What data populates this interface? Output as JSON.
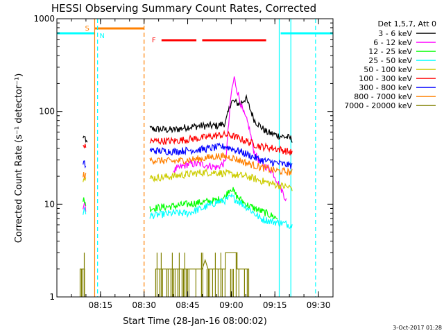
{
  "chart_data": {
    "type": "line",
    "title": "HESSI Observing Summary Count Rates, Corrected",
    "xlabel": "Start Time (28-Jan-16 08:00:02)",
    "ylabel": "Corrected Count Rate (s⁻¹ detector⁻¹)",
    "yscale": "log",
    "ylim": [
      1,
      1000
    ],
    "xlim_minutes": [
      0,
      95
    ],
    "y_ticks": [
      {
        "v": 1,
        "label": "1"
      },
      {
        "v": 10,
        "label": "10"
      },
      {
        "v": 100,
        "label": "100"
      },
      {
        "v": 1000,
        "label": "1000"
      }
    ],
    "x_ticks": [
      {
        "v": 15,
        "label": "08:15"
      },
      {
        "v": 30,
        "label": "08:30"
      },
      {
        "v": 45,
        "label": "08:45"
      },
      {
        "v": 60,
        "label": "09:00"
      },
      {
        "v": 75,
        "label": "09:15"
      },
      {
        "v": 90,
        "label": "09:30"
      }
    ],
    "legend_title": "Det 1,5,7, Att 0",
    "legend_position": "right",
    "timestamp": "3-Oct-2017 01:28",
    "flags": [
      {
        "label": "S",
        "color": "#ff8000",
        "x_start": 13,
        "x_end": 30
      },
      {
        "label": "N",
        "color": "#00ffff",
        "x_start": 0,
        "x_end": 13
      },
      {
        "label": "N",
        "color": "#00ffff",
        "x_start": 77,
        "x_end": 95
      },
      {
        "label": "F",
        "color": "#ff0000",
        "segments": [
          [
            36,
            48
          ],
          [
            50,
            72
          ]
        ]
      }
    ],
    "vlines": [
      {
        "x": 13,
        "color": "#ff8000",
        "style": "solid"
      },
      {
        "x": 14,
        "color": "#00ffff",
        "style": "dashed"
      },
      {
        "x": 30,
        "color": "#ff8000",
        "style": "dashed"
      },
      {
        "x": 76.5,
        "color": "#00ffff",
        "style": "solid"
      },
      {
        "x": 80.5,
        "color": "#00ffff",
        "style": "solid"
      },
      {
        "x": 89,
        "color": "#00ffff",
        "style": "dashed"
      }
    ],
    "series": [
      {
        "name": "3 - 6 keV",
        "color": "#000000",
        "segments": [
          [
            [
              9,
              60
            ],
            [
              10,
              45
            ],
            [
              10.5,
              50
            ]
          ],
          [
            [
              32,
              65
            ],
            [
              40,
              63
            ],
            [
              45,
              68
            ],
            [
              50,
              70
            ],
            [
              55,
              70
            ],
            [
              58,
              75
            ],
            [
              60,
              130
            ],
            [
              63,
              120
            ],
            [
              65,
              140
            ],
            [
              68,
              80
            ],
            [
              72,
              60
            ],
            [
              76,
              55
            ],
            [
              80,
              52
            ],
            [
              81,
              50
            ]
          ]
        ]
      },
      {
        "name": "6 - 12 keV",
        "color": "#ff00ff",
        "segments": [
          [
            [
              9,
              10
            ],
            [
              10,
              9
            ]
          ],
          [
            [
              40,
              23
            ],
            [
              45,
              27
            ],
            [
              50,
              27
            ],
            [
              55,
              25
            ],
            [
              58,
              28
            ],
            [
              60,
              160
            ],
            [
              61,
              230
            ],
            [
              62,
              170
            ],
            [
              64,
              100
            ],
            [
              66,
              70
            ],
            [
              68,
              35
            ],
            [
              70,
              28
            ],
            [
              74,
              23
            ],
            [
              77,
              15
            ],
            [
              79,
              11
            ]
          ]
        ]
      },
      {
        "name": "12 - 25 keV",
        "color": "#00ff00",
        "segments": [
          [
            [
              9,
              12
            ],
            [
              10,
              10
            ]
          ],
          [
            [
              32,
              9
            ],
            [
              40,
              9.5
            ],
            [
              45,
              10
            ],
            [
              50,
              10.5
            ],
            [
              55,
              11
            ],
            [
              58,
              12
            ],
            [
              59,
              14
            ],
            [
              60,
              15
            ],
            [
              62,
              12
            ],
            [
              65,
              10
            ],
            [
              68,
              9
            ],
            [
              72,
              8
            ],
            [
              76,
              7
            ]
          ]
        ]
      },
      {
        "name": "25 - 50 keV",
        "color": "#00ffff",
        "segments": [
          [
            [
              9,
              9
            ],
            [
              10,
              8
            ]
          ],
          [
            [
              32,
              7.5
            ],
            [
              40,
              8
            ],
            [
              45,
              8
            ],
            [
              50,
              9
            ],
            [
              55,
              10.5
            ],
            [
              58,
              11
            ],
            [
              60,
              12
            ],
            [
              62,
              11
            ],
            [
              66,
              9
            ],
            [
              70,
              7
            ],
            [
              74,
              6.5
            ],
            [
              78,
              6.2
            ],
            [
              80,
              6
            ],
            [
              81,
              5.8
            ]
          ]
        ]
      },
      {
        "name": "50 - 100 keV",
        "color": "#cccc00",
        "segments": [
          [
            [
              9,
              21
            ],
            [
              10,
              19
            ]
          ],
          [
            [
              32,
              19
            ],
            [
              40,
              20
            ],
            [
              45,
              21
            ],
            [
              50,
              22
            ],
            [
              55,
              22
            ],
            [
              60,
              21
            ],
            [
              65,
              20
            ],
            [
              70,
              18
            ],
            [
              76,
              16
            ],
            [
              81,
              15
            ]
          ]
        ]
      },
      {
        "name": "100 - 300 keV",
        "color": "#ff0000",
        "segments": [
          [
            [
              9,
              45
            ],
            [
              10,
              40
            ]
          ],
          [
            [
              32,
              48
            ],
            [
              40,
              48
            ],
            [
              45,
              50
            ],
            [
              50,
              52
            ],
            [
              55,
              55
            ],
            [
              58,
              56
            ],
            [
              60,
              55
            ],
            [
              65,
              48
            ],
            [
              70,
              42
            ],
            [
              75,
              40
            ],
            [
              81,
              36
            ]
          ]
        ]
      },
      {
        "name": "300 - 800 keV",
        "color": "#0000ff",
        "segments": [
          [
            [
              9,
              28
            ],
            [
              10,
              26
            ]
          ],
          [
            [
              32,
              38
            ],
            [
              40,
              37
            ],
            [
              45,
              38
            ],
            [
              50,
              39
            ],
            [
              55,
              41
            ],
            [
              58,
              42
            ],
            [
              60,
              40
            ],
            [
              65,
              35
            ],
            [
              70,
              30
            ],
            [
              75,
              28
            ],
            [
              81,
              26
            ]
          ]
        ]
      },
      {
        "name": "800 - 7000 keV",
        "color": "#ff8000",
        "segments": [
          [
            [
              9,
              21
            ],
            [
              10,
              20
            ]
          ],
          [
            [
              32,
              30
            ],
            [
              40,
              29
            ],
            [
              45,
              30
            ],
            [
              50,
              31
            ],
            [
              55,
              33
            ],
            [
              60,
              32
            ],
            [
              65,
              28
            ],
            [
              70,
              25
            ],
            [
              75,
              23
            ],
            [
              81,
              22
            ]
          ]
        ]
      },
      {
        "name": "7000 - 20000 keV",
        "color": "#808000",
        "segments": [
          [
            [
              8,
              1
            ],
            [
              8,
              2
            ],
            [
              9.5,
              2
            ],
            [
              9.5,
              1
            ]
          ],
          [
            [
              34,
              1
            ],
            [
              34,
              2
            ],
            [
              50,
              2
            ],
            [
              51,
              2.5
            ],
            [
              52,
              2
            ],
            [
              58,
              2
            ],
            [
              58,
              3
            ],
            [
              62,
              3
            ],
            [
              62,
              2
            ],
            [
              66,
              2
            ],
            [
              66,
              1
            ]
          ]
        ]
      }
    ]
  }
}
